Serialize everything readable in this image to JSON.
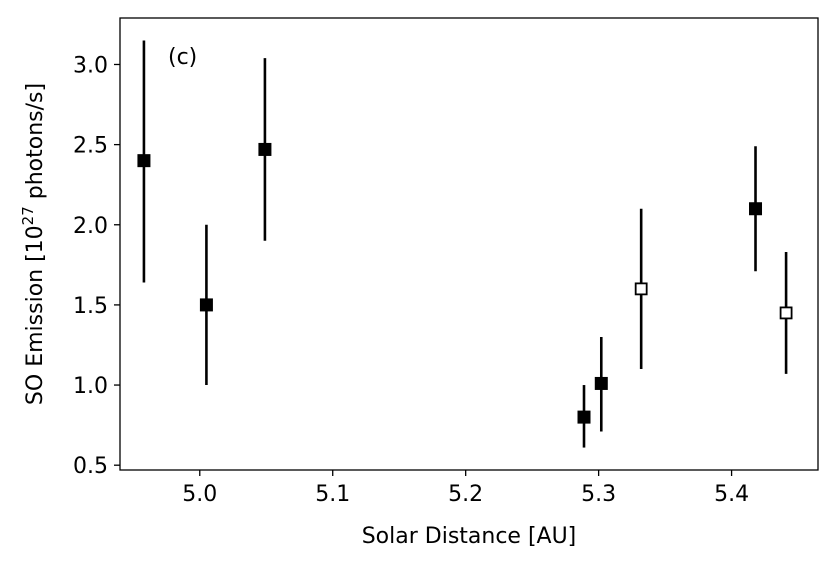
{
  "chart_data": {
    "type": "scatter",
    "panel_label": "(c)",
    "xlabel": "Solar Distance [AU]",
    "ylabel_main": "SO Emission [10",
    "ylabel_sup": "27",
    "ylabel_tail": " photons/s]",
    "xlim": [
      4.94,
      5.465
    ],
    "ylim": [
      0.47,
      3.29
    ],
    "xticks": [
      {
        "value": 5.0,
        "label": "5.0"
      },
      {
        "value": 5.1,
        "label": "5.1"
      },
      {
        "value": 5.2,
        "label": "5.2"
      },
      {
        "value": 5.3,
        "label": "5.3"
      },
      {
        "value": 5.4,
        "label": "5.4"
      }
    ],
    "yticks": [
      {
        "value": 0.5,
        "label": "0.5"
      },
      {
        "value": 1.0,
        "label": "1.0"
      },
      {
        "value": 1.5,
        "label": "1.5"
      },
      {
        "value": 2.0,
        "label": "2.0"
      },
      {
        "value": 2.5,
        "label": "2.5"
      },
      {
        "value": 3.0,
        "label": "3.0"
      }
    ],
    "grid": false,
    "colors": {
      "marker": "#000000",
      "axis": "#000000"
    },
    "points": [
      {
        "x": 4.958,
        "y": 2.4,
        "ylow": 1.64,
        "yhigh": 3.15,
        "filled": true
      },
      {
        "x": 5.005,
        "y": 1.5,
        "ylow": 1.0,
        "yhigh": 2.0,
        "filled": true
      },
      {
        "x": 5.049,
        "y": 2.47,
        "ylow": 1.9,
        "yhigh": 3.04,
        "filled": true
      },
      {
        "x": 5.289,
        "y": 0.8,
        "ylow": 0.61,
        "yhigh": 1.0,
        "filled": true
      },
      {
        "x": 5.302,
        "y": 1.01,
        "ylow": 0.71,
        "yhigh": 1.3,
        "filled": true
      },
      {
        "x": 5.332,
        "y": 1.6,
        "ylow": 1.1,
        "yhigh": 2.1,
        "filled": false
      },
      {
        "x": 5.418,
        "y": 2.1,
        "ylow": 1.71,
        "yhigh": 2.49,
        "filled": true
      },
      {
        "x": 5.441,
        "y": 1.45,
        "ylow": 1.07,
        "yhigh": 1.83,
        "filled": false
      }
    ]
  }
}
